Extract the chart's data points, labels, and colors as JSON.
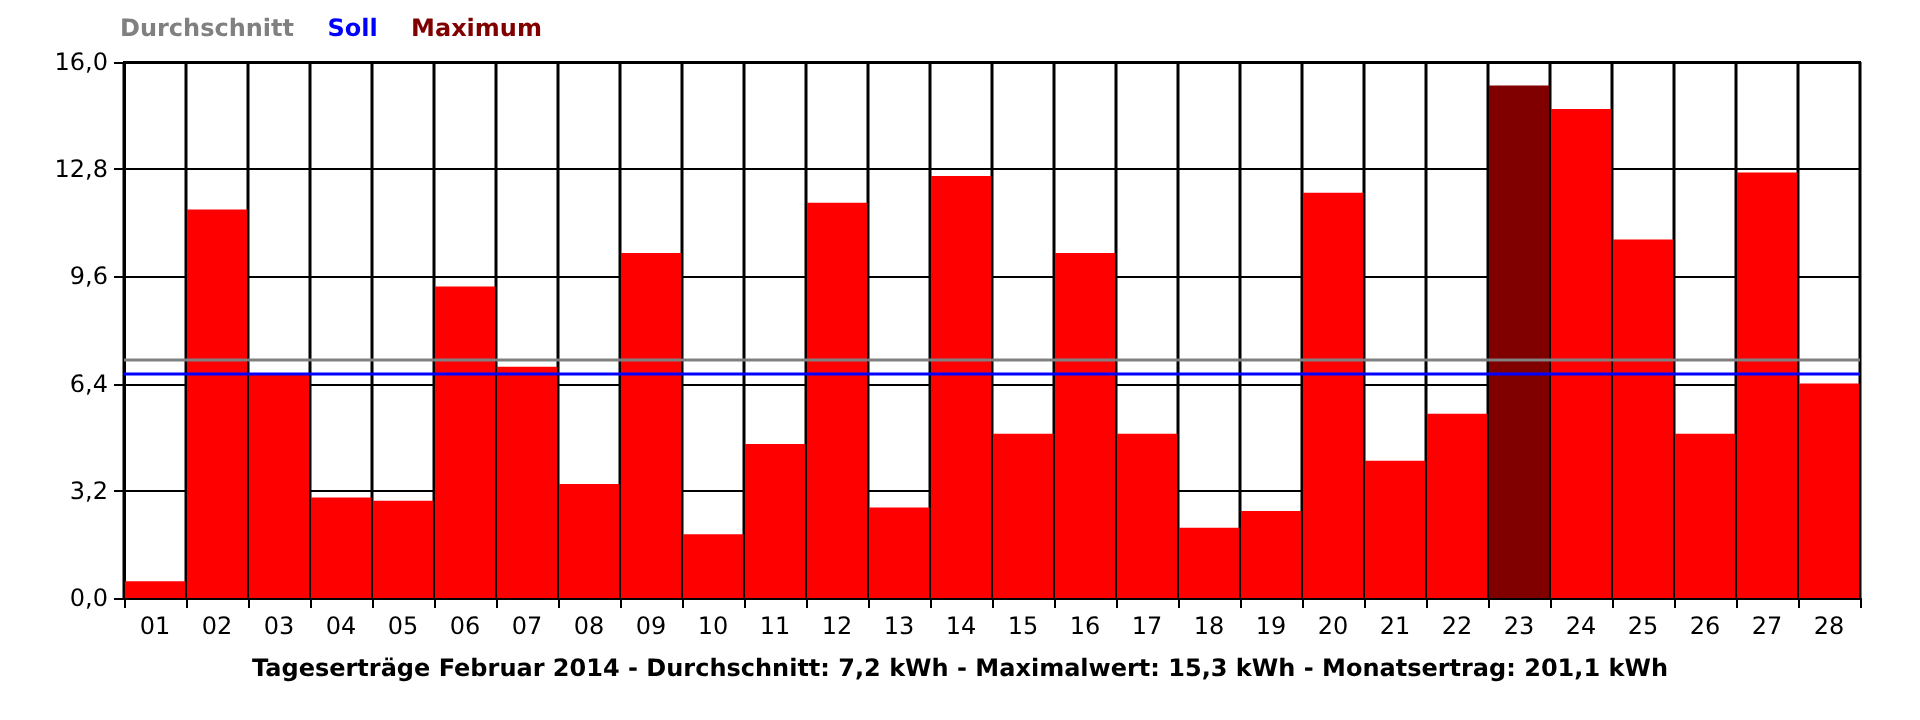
{
  "chart_data": {
    "type": "bar",
    "categories": [
      "01",
      "02",
      "03",
      "04",
      "05",
      "06",
      "07",
      "08",
      "09",
      "10",
      "11",
      "12",
      "13",
      "14",
      "15",
      "16",
      "17",
      "18",
      "19",
      "20",
      "21",
      "22",
      "23",
      "24",
      "25",
      "26",
      "27",
      "28"
    ],
    "series": [
      {
        "color": "#ff0000",
        "values": [
          0.5,
          11.6,
          6.7,
          3.0,
          2.9,
          9.3,
          6.9,
          3.4,
          10.3,
          1.9,
          4.6,
          11.8,
          2.7,
          12.6,
          4.9,
          10.3,
          4.9,
          2.1,
          2.6,
          12.1,
          4.1,
          5.5,
          null,
          14.6,
          10.7,
          4.9,
          12.7,
          6.4
        ]
      },
      {
        "name": "Maximum",
        "color": "#800000",
        "values": [
          null,
          null,
          null,
          null,
          null,
          null,
          null,
          null,
          null,
          null,
          null,
          null,
          null,
          null,
          null,
          null,
          null,
          null,
          null,
          null,
          null,
          null,
          15.3,
          null,
          null,
          null,
          null,
          null
        ]
      }
    ],
    "ylim": [
      0,
      16
    ],
    "yticks": [
      {
        "value": 0,
        "label": "0,0"
      },
      {
        "value": 3.2,
        "label": "3,2"
      },
      {
        "value": 6.4,
        "label": "6,4"
      },
      {
        "value": 9.6,
        "label": "9,6"
      },
      {
        "value": 12.8,
        "label": "12,8"
      },
      {
        "value": 16,
        "label": "16,0"
      }
    ],
    "ref_lines": [
      {
        "axis": "y",
        "value": 7.1,
        "label": "Durchschnitt",
        "color": "#808080"
      },
      {
        "axis": "y",
        "value": 6.7,
        "label": "Soll",
        "color": "#0000ff"
      }
    ],
    "grid": true,
    "legend": "top left",
    "annotations": [
      "Tageserträge Februar 2014 - Durchschnitt: 7,2 kWh - Maximalwert: 15,3 kWh - Monatsertrag: 201,1 kWh"
    ]
  }
}
